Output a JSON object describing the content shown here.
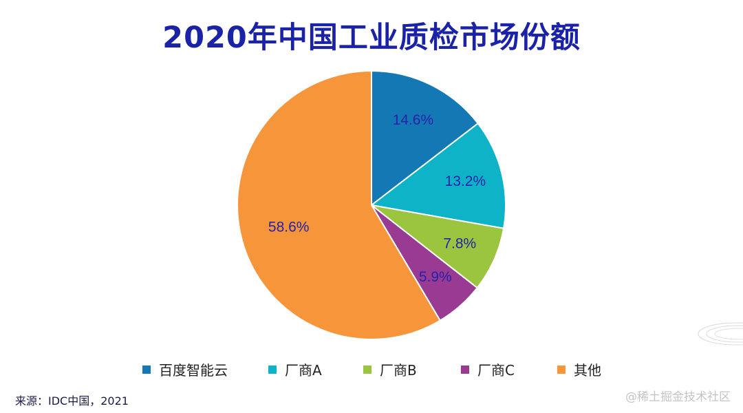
{
  "title": "2020年中国工业质检市场份额",
  "source": "来源：IDC中国，2021",
  "watermark": "@稀土掘金技术社区",
  "chart_data": {
    "type": "pie",
    "title": "2020年中国工业质检市场份额",
    "legend_position": "bottom",
    "slices": [
      {
        "name": "百度智能云",
        "value": 14.6,
        "label": "14.6%",
        "color": "#1478b4"
      },
      {
        "name": "厂商A",
        "value": 13.2,
        "label": "13.2%",
        "color": "#0fb3c8"
      },
      {
        "name": "厂商B",
        "value": 7.8,
        "label": "7.8%",
        "color": "#9bc43f"
      },
      {
        "name": "厂商C",
        "value": 5.9,
        "label": "5.9%",
        "color": "#9a3b93"
      },
      {
        "name": "其他",
        "value": 58.6,
        "label": "58.6%",
        "color": "#f7953a"
      }
    ],
    "label_color": "#2222aa"
  }
}
